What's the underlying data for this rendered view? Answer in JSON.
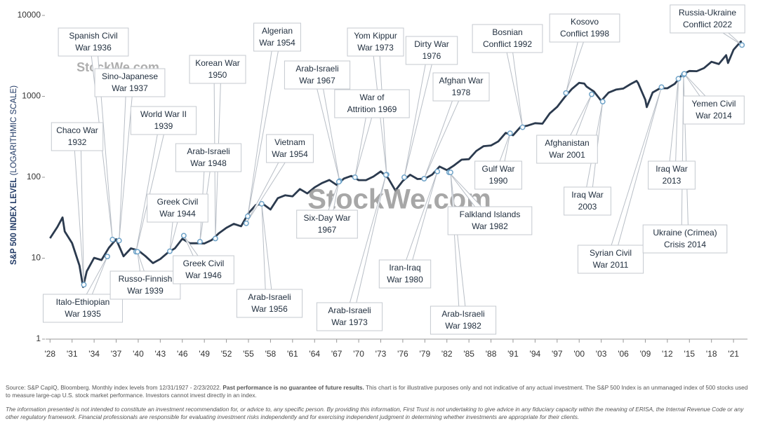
{
  "chart_data": {
    "type": "line",
    "y_label_bold": "S&P 500 INDEX LEVEL",
    "y_label_rest": "(LOGARITHMIC SCALE)",
    "color": "#2b3a4e",
    "log_scale": true,
    "grid": false,
    "xlim": [
      1927.4,
      2022.9
    ],
    "ylim": [
      1,
      10000
    ],
    "yticks": [
      1,
      10,
      100,
      1000,
      10000
    ],
    "xticks": [
      {
        "value": 1928,
        "label": "'28"
      },
      {
        "value": 1931,
        "label": "'31"
      },
      {
        "value": 1934,
        "label": "'34"
      },
      {
        "value": 1937,
        "label": "'37"
      },
      {
        "value": 1940,
        "label": "'40"
      },
      {
        "value": 1943,
        "label": "'43"
      },
      {
        "value": 1946,
        "label": "'46"
      },
      {
        "value": 1949,
        "label": "'49"
      },
      {
        "value": 1952,
        "label": "'52"
      },
      {
        "value": 1955,
        "label": "'55"
      },
      {
        "value": 1958,
        "label": "'58"
      },
      {
        "value": 1961,
        "label": "'61"
      },
      {
        "value": 1964,
        "label": "'64"
      },
      {
        "value": 1967,
        "label": "'67"
      },
      {
        "value": 1970,
        "label": "'70"
      },
      {
        "value": 1973,
        "label": "'73"
      },
      {
        "value": 1976,
        "label": "'76"
      },
      {
        "value": 1979,
        "label": "'79"
      },
      {
        "value": 1982,
        "label": "'82"
      },
      {
        "value": 1985,
        "label": "'85"
      },
      {
        "value": 1988,
        "label": "'88"
      },
      {
        "value": 1991,
        "label": "'91"
      },
      {
        "value": 1994,
        "label": "'94"
      },
      {
        "value": 1997,
        "label": "'97"
      },
      {
        "value": 2000,
        "label": "'00"
      },
      {
        "value": 2003,
        "label": "'03"
      },
      {
        "value": 2006,
        "label": "'06"
      },
      {
        "value": 2009,
        "label": "'09"
      },
      {
        "value": 2012,
        "label": "'12"
      },
      {
        "value": 2015,
        "label": "'15"
      },
      {
        "value": 2018,
        "label": "'18"
      },
      {
        "value": 2021,
        "label": "'21"
      }
    ],
    "x": [
      1928,
      1929,
      1929.7,
      1930,
      1931,
      1932,
      1932.5,
      1933,
      1934,
      1935,
      1936,
      1937,
      1938,
      1939,
      1940,
      1941,
      1942,
      1943,
      1944,
      1945,
      1946,
      1947,
      1948,
      1949,
      1950,
      1951,
      1952,
      1953,
      1954,
      1955,
      1956,
      1957,
      1958,
      1959,
      1960,
      1961,
      1962,
      1963,
      1964,
      1965,
      1966,
      1967,
      1968,
      1969,
      1970,
      1971,
      1972,
      1973,
      1974,
      1975,
      1976,
      1977,
      1978,
      1979,
      1980,
      1981,
      1982,
      1983,
      1984,
      1985,
      1986,
      1987,
      1988,
      1989,
      1990,
      1991,
      1992,
      1993,
      1994,
      1995,
      1996,
      1997,
      1998,
      1999,
      2000,
      2000.7,
      2001,
      2002,
      2003,
      2004,
      2005,
      2006,
      2007,
      2007.8,
      2008,
      2009,
      2009.2,
      2010,
      2011,
      2012,
      2013,
      2014,
      2015,
      2016,
      2017,
      2018,
      2019,
      2020,
      2020.25,
      2021,
      2022,
      2022.15
    ],
    "values": [
      17.66,
      24.35,
      31.9,
      21.45,
      15.34,
      8.12,
      4.4,
      6.89,
      10.1,
      9.5,
      13.43,
      17.18,
      10.55,
      13.21,
      12.49,
      10.58,
      8.69,
      9.77,
      11.67,
      13.28,
      17.36,
      15.3,
      15.3,
      15.2,
      16.76,
      20.41,
      23.77,
      26.57,
      24.81,
      35.98,
      45.48,
      46.67,
      39.99,
      55.21,
      59.89,
      58.11,
      71.55,
      63.1,
      75.02,
      84.75,
      92.43,
      80.33,
      96.47,
      103.86,
      92.06,
      92.15,
      102.09,
      118.05,
      97.55,
      68.56,
      90.19,
      107.46,
      95.1,
      96.11,
      107.94,
      135.76,
      122.55,
      140.64,
      164.93,
      167.24,
      211.28,
      242.17,
      247.08,
      277.72,
      353.4,
      330.22,
      417.09,
      435.71,
      466.45,
      459.27,
      615.93,
      740.74,
      970.43,
      1229.23,
      1469.25,
      1436,
      1320.28,
      1148.08,
      879.82,
      1111.92,
      1211.92,
      1248.29,
      1418.3,
      1549,
      1468.36,
      903.25,
      735,
      1115.1,
      1257.64,
      1257.6,
      1426.19,
      1848.36,
      2058.9,
      2043.94,
      2238.83,
      2673.61,
      2506.85,
      3230.78,
      2585,
      3756.07,
      4766.18,
      4225
    ],
    "annotations": [
      {
        "lines": [
          "Chaco War",
          "1932"
        ],
        "x": 1932.6,
        "y": 4.7
      },
      {
        "lines": [
          "Spanish Civil",
          "War 1936"
        ],
        "x": 1936.5,
        "y": 17
      },
      {
        "lines": [
          "Sino-Japanese",
          "War 1937"
        ],
        "x": 1937.4,
        "y": 16.5
      },
      {
        "lines": [
          "World War II",
          "1939"
        ],
        "x": 1939.7,
        "y": 12
      },
      {
        "lines": [
          "Italo-Ethiopian",
          "War 1935"
        ],
        "x": 1935.8,
        "y": 10.5
      },
      {
        "lines": [
          "Russo-Finnish",
          "War 1939"
        ],
        "x": 1939.9,
        "y": 12
      },
      {
        "lines": [
          "Greek Civil",
          "War 1944"
        ],
        "x": 1944.3,
        "y": 12.2
      },
      {
        "lines": [
          "Greek Civil",
          "War 1946"
        ],
        "x": 1946.2,
        "y": 19
      },
      {
        "lines": [
          "Korean War",
          "1950"
        ],
        "x": 1950.5,
        "y": 17.5
      },
      {
        "lines": [
          "Arab-Israeli",
          "War 1948"
        ],
        "x": 1948.4,
        "y": 16
      },
      {
        "lines": [
          "Algerian",
          "War 1954"
        ],
        "x": 1954.9,
        "y": 33
      },
      {
        "lines": [
          "Vietnam",
          "War 1954"
        ],
        "x": 1954.7,
        "y": 27
      },
      {
        "lines": [
          "Arab-Israeli",
          "War 1956"
        ],
        "x": 1956.8,
        "y": 47
      },
      {
        "lines": [
          "Arab-Israeli",
          "War 1967"
        ],
        "x": 1967.4,
        "y": 90
      },
      {
        "lines": [
          "Six-Day War",
          "1967"
        ],
        "x": 1967.3,
        "y": 88
      },
      {
        "lines": [
          "War of",
          "Attrition 1969"
        ],
        "x": 1969.5,
        "y": 100
      },
      {
        "lines": [
          "Yom Kippur",
          "War 1973"
        ],
        "x": 1973.8,
        "y": 108
      },
      {
        "lines": [
          "Arab-Israeli",
          "War 1973"
        ],
        "x": 1973.7,
        "y": 107
      },
      {
        "lines": [
          "Dirty War",
          "1976"
        ],
        "x": 1976.2,
        "y": 100
      },
      {
        "lines": [
          "Afghan War",
          "1978"
        ],
        "x": 1978.9,
        "y": 96
      },
      {
        "lines": [
          "Iran-Iraq",
          "War 1980"
        ],
        "x": 1980.7,
        "y": 118
      },
      {
        "lines": [
          "Falkland Islands",
          "War 1982"
        ],
        "x": 1982.3,
        "y": 115
      },
      {
        "lines": [
          "Arab-Israeli",
          "War 1982"
        ],
        "x": 1982.5,
        "y": 115
      },
      {
        "lines": [
          "Bosnian",
          "Conflict 1992"
        ],
        "x": 1992.3,
        "y": 415
      },
      {
        "lines": [
          "Gulf War",
          "1990"
        ],
        "x": 1990.6,
        "y": 350
      },
      {
        "lines": [
          "Kosovo",
          "Conflict 1998"
        ],
        "x": 1998.2,
        "y": 1100
      },
      {
        "lines": [
          "Afghanistan",
          "War 2001"
        ],
        "x": 2001.7,
        "y": 1060
      },
      {
        "lines": [
          "Iraq War",
          "2003"
        ],
        "x": 2003.2,
        "y": 860
      },
      {
        "lines": [
          "Syrian Civil",
          "War 2011"
        ],
        "x": 2011.2,
        "y": 1300
      },
      {
        "lines": [
          "Iraq War",
          "2013"
        ],
        "x": 2013.5,
        "y": 1650
      },
      {
        "lines": [
          "Ukraine (Crimea)",
          "Crisis 2014"
        ],
        "x": 2014.2,
        "y": 1850
      },
      {
        "lines": [
          "Yemen Civil",
          "War 2014"
        ],
        "x": 2014.3,
        "y": 1900
      },
      {
        "lines": [
          "Russia-Ukraine",
          "Conflict 2022"
        ],
        "x": 2022.15,
        "y": 4300
      }
    ],
    "watermarks": [
      "StockWe.com",
      "StockWe.com"
    ],
    "source_pre": "Source: S&P CapIQ, Bloomberg. Monthly index levels from 12/31/1927 - 2/23/2022.",
    "source_bold": "Past performance is no guarantee of future results.",
    "source_post": "This chart is for illustrative purposes only and not indicative of any actual investment. The S&P 500 Index is an unmanaged index of 500 stocks used to measure large-cap U.S. stock market performance. Investors cannot invest directly in an index.",
    "disclaimer": "The information presented is not intended to constitute an investment recommendation for, or advice to, any specific person. By providing this information, First Trust is not undertaking to give advice in any fiduciary capacity within the meaning of ERISA, the Internal Revenue Code or any other regulatory framework. Financial professionals are responsible for evaluating investment risks independently and for exercising independent judgment in determining whether investments are appropriate for their clients."
  }
}
